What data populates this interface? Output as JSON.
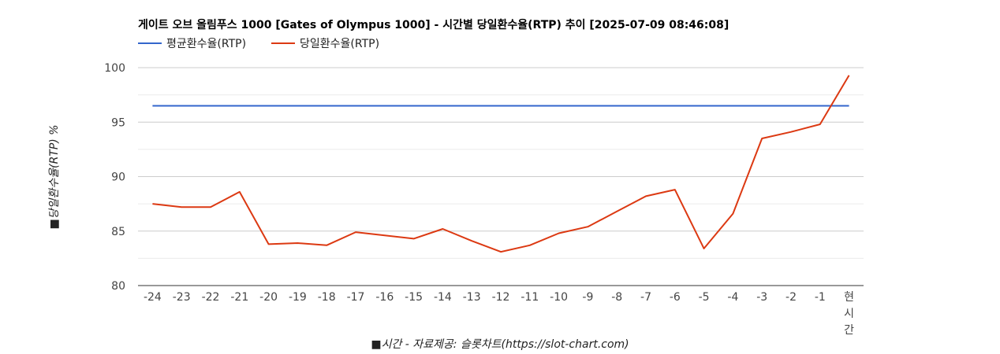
{
  "chart_data": {
    "type": "line",
    "title": "게이트 오브 올림푸스 1000 [Gates of Olympus 1000] - 시간별 당일환수율(RTP) 추이 [2025-07-09 08:46:08]",
    "xlabel": "■시간 - 자료제공: 슬롯차트(https://slot-chart.com)",
    "ylabel": "■당일환수율(RTP) %",
    "categories": [
      "-24",
      "-23",
      "-22",
      "-21",
      "-20",
      "-19",
      "-18",
      "-17",
      "-16",
      "-15",
      "-14",
      "-13",
      "-12",
      "-11",
      "-10",
      "-9",
      "-8",
      "-7",
      "-6",
      "-5",
      "-4",
      "-3",
      "-2",
      "-1",
      "현시간"
    ],
    "series": [
      {
        "name": "평균환수율(RTP)",
        "color": "#3366cc",
        "values": [
          96.5,
          96.5,
          96.5,
          96.5,
          96.5,
          96.5,
          96.5,
          96.5,
          96.5,
          96.5,
          96.5,
          96.5,
          96.5,
          96.5,
          96.5,
          96.5,
          96.5,
          96.5,
          96.5,
          96.5,
          96.5,
          96.5,
          96.5,
          96.5,
          96.5
        ]
      },
      {
        "name": "당일환수율(RTP)",
        "color": "#dc3912",
        "values": [
          87.5,
          87.2,
          87.2,
          88.6,
          83.8,
          83.9,
          83.7,
          84.9,
          84.6,
          84.3,
          85.2,
          84.1,
          83.1,
          83.7,
          84.8,
          85.4,
          86.8,
          88.2,
          88.8,
          83.4,
          86.6,
          93.5,
          94.1,
          94.8,
          99.3
        ]
      }
    ],
    "ylim": [
      80,
      100
    ],
    "yticks": [
      80,
      85,
      90,
      95,
      100
    ],
    "grid": true,
    "legend_position": "top-left"
  }
}
